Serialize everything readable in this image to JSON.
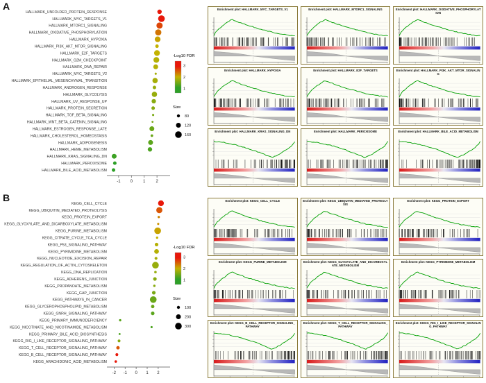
{
  "figure": {
    "background": "#ffffff"
  },
  "colors": {
    "scale_low": "#2ea028",
    "scale_mid": "#c4b200",
    "scale_high": "#e8180a",
    "gsea_curve": "#00a000",
    "barcode": "#111111",
    "rank_pos": "#d81b1b",
    "rank_neg": "#2020c0"
  },
  "chart_data": [
    {
      "panel": "A",
      "type": "scatter",
      "title": "",
      "xlabel": "",
      "ylabel": "",
      "xlim": [
        -1.7,
        2.7
      ],
      "x_ticks": [
        -1,
        0,
        1,
        2
      ],
      "terms": [
        "HALLMARK_UNFOLDED_PROTEIN_RESPONSE",
        "HALLMARK_MYC_TARGETS_V1",
        "HALLMARK_MTORC1_SIGNALING",
        "HALLMARK_OXIDATIVE_PHOSPHORYLATION",
        "HALLMARK_HYPOXIA",
        "HALLMARK_PI3K_AKT_MTOR_SIGNALING",
        "HALLMARK_E2F_TARGETS",
        "HALLMARK_G2M_CHECKPOINT",
        "HALLMARK_DNA_REPAIR",
        "HALLMARK_MYC_TARGETS_V2",
        "HALLMARK_EPITHELIAL_MESENCHYMAL_TRANSITION",
        "HALLMARK_ANDROGEN_RESPONSE",
        "HALLMARK_GLYCOLYSIS",
        "HALLMARK_UV_RESPONSE_UP",
        "HALLMARK_PROTEIN_SECRETION",
        "HALLMARK_TGF_BETA_SIGNALING",
        "HALLMARK_WNT_BETA_CATENIN_SIGNALING",
        "HALLMARK_ESTROGEN_RESPONSE_LATE",
        "HALLMARK_CHOLESTEROL_HOMEOSTASIS",
        "HALLMARK_ADIPOGENESIS",
        "HALLMARK_HEME_METABOLISM",
        "HALLMARK_KRAS_SIGNALING_DN",
        "HALLMARK_PEROXISOME",
        "HALLMARK_BILE_ACID_METABOLISM"
      ],
      "nes": [
        2.2,
        2.35,
        2.2,
        2.1,
        2.05,
        2.0,
        2.0,
        1.95,
        1.9,
        1.9,
        1.85,
        1.8,
        1.8,
        1.75,
        1.7,
        1.7,
        1.65,
        1.6,
        1.6,
        1.5,
        1.45,
        -1.35,
        -1.3,
        -1.4
      ],
      "neg_log10_fdr": [
        3.2,
        3.5,
        2.7,
        2.4,
        2.1,
        2.0,
        2.0,
        1.9,
        1.9,
        1.8,
        1.8,
        1.7,
        1.7,
        1.6,
        1.6,
        1.5,
        1.5,
        1.4,
        1.4,
        1.3,
        1.2,
        1.1,
        1.0,
        1.0
      ],
      "size": [
        110,
        160,
        150,
        150,
        140,
        90,
        140,
        140,
        120,
        60,
        130,
        90,
        130,
        110,
        90,
        60,
        50,
        120,
        70,
        120,
        110,
        120,
        90,
        90
      ],
      "legend": {
        "color_title": "-Log10 FDR",
        "color_ticks": [
          3,
          2,
          1
        ],
        "size_title": "Size",
        "size_ticks": [
          80,
          120,
          160
        ]
      },
      "gsea_plots": [
        {
          "title": "Enrichment plot: HALLMARK_MYC_TARGETS_V1",
          "direction": "pos"
        },
        {
          "title": "Enrichment plot: HALLMARK_MTORC1_SIGNALING",
          "direction": "pos"
        },
        {
          "title": "Enrichment plot: HALLMARK_OXIDATIVE_PHOSPHORYLATION",
          "direction": "pos"
        },
        {
          "title": "Enrichment plot: HALLMARK_HYPOXIA",
          "direction": "pos"
        },
        {
          "title": "Enrichment plot: HALLMARK_E2F_TARGETS",
          "direction": "pos"
        },
        {
          "title": "Enrichment plot: HALLMARK_PI3K_AKT_MTOR_SIGNALING",
          "direction": "pos"
        },
        {
          "title": "Enrichment plot: HALLMARK_KRAS_SIGNALING_DN",
          "direction": "neg"
        },
        {
          "title": "Enrichment plot: HALLMARK_PEROXISOME",
          "direction": "neg"
        },
        {
          "title": "Enrichment plot: HALLMARK_BILE_ACID_METABOLISM",
          "direction": "neg"
        }
      ]
    },
    {
      "panel": "B",
      "type": "scatter",
      "title": "",
      "xlabel": "",
      "ylabel": "",
      "xlim": [
        -2.4,
        2.7
      ],
      "x_ticks": [
        -2,
        -1,
        0,
        1,
        2
      ],
      "terms": [
        "KEGG_CELL_CYCLE",
        "KEGG_UBIQUITIN_MEDIATED_PROTEOLYSIS",
        "KEGG_PROTEIN_EXPORT",
        "KEGG_GLYOXYLATE_AND_DICARBOXYLATE_METABOLISM",
        "KEGG_PURINE_METABOLISM",
        "KEGG_CITRATE_CYCLE_TCA_CYCLE",
        "KEGG_P53_SIGNALING_PATHWAY",
        "KEGG_PYRIMIDINE_METABOLISM",
        "KEGG_NUCLEOTIDE_EXCISION_REPAIR",
        "KEGG_REGULATION_OF_ACTIN_CYTOSKELETON",
        "KEGG_DNA_REPLICATION",
        "KEGG_ADHERENS_JUNCTION",
        "KEGG_PROPANOATE_METABOLISM",
        "KEGG_GAP_JUNCTION",
        "KEGG_PATHWAYS_IN_CANCER",
        "KEGG_GLYCEROPHOSPHOLIPID_METABOLISM",
        "KEGG_GNRH_SIGNALING_PATHWAY",
        "KEGG_PRIMARY_IMMUNODEFICIENCY",
        "KEGG_NICOTINATE_AND_NICOTINAMIDE_METABOLISM",
        "KEGG_PRIMARY_BILE_ACID_BIOSYNTHESIS",
        "KEGG_RIG_I_LIKE_RECEPTOR_SIGNALING_PATHWAY",
        "KEGG_T_CELL_RECEPTOR_SIGNALING_PATHWAY",
        "KEGG_B_CELL_RECEPTOR_SIGNALING_PATHWAY",
        "KEGG_ARACHIDONIC_ACID_METABOLISM"
      ],
      "nes": [
        2.25,
        2.1,
        2.05,
        2.0,
        1.95,
        1.9,
        1.85,
        1.85,
        1.8,
        1.75,
        1.75,
        1.7,
        1.65,
        1.6,
        1.55,
        1.5,
        1.5,
        -1.45,
        1.4,
        -1.5,
        -1.55,
        -1.65,
        -1.75,
        -1.85
      ],
      "neg_log10_fdr": [
        3.4,
        2.6,
        2.3,
        2.2,
        2.1,
        2.0,
        1.9,
        1.9,
        1.8,
        1.7,
        1.7,
        1.6,
        1.6,
        1.5,
        1.4,
        1.4,
        1.3,
        1.3,
        1.2,
        1.2,
        1.6,
        2.6,
        3.0,
        3.3
      ],
      "size": [
        250,
        270,
        60,
        50,
        300,
        60,
        130,
        190,
        90,
        300,
        70,
        130,
        60,
        130,
        300,
        120,
        130,
        60,
        50,
        40,
        90,
        120,
        90,
        70
      ],
      "legend": {
        "color_title": "-Log10 FDR",
        "color_ticks": [
          3,
          2,
          1
        ],
        "size_title": "Size",
        "size_ticks": [
          100,
          200,
          300
        ]
      },
      "gsea_plots": [
        {
          "title": "Enrichment plot: KEGG_CELL_CYCLE",
          "direction": "pos"
        },
        {
          "title": "Enrichment plot: KEGG_UBIQUITIN_MEDIATED_PROTEOLYSIS",
          "direction": "pos"
        },
        {
          "title": "Enrichment plot: KEGG_PROTEIN_EXPORT",
          "direction": "pos"
        },
        {
          "title": "Enrichment plot: KEGG_PURINE_METABOLISM",
          "direction": "pos"
        },
        {
          "title": "Enrichment plot: KEGG_GLYOXYLATE_AND_DICARBOXYLATE_METABOLISM",
          "direction": "pos"
        },
        {
          "title": "Enrichment plot: KEGG_PYRIMIDINE_METABOLISM",
          "direction": "pos"
        },
        {
          "title": "Enrichment plot: KEGG_B_CELL_RECEPTOR_SIGNALING_PATHWAY",
          "direction": "neg"
        },
        {
          "title": "Enrichment plot: KEGG_T_CELL_RECEPTOR_SIGNALING_PATHWAY",
          "direction": "neg"
        },
        {
          "title": "Enrichment plot: KEGG_RIG_I_LIKE_RECEPTOR_SIGNALING_PATHWAY",
          "direction": "neg"
        }
      ]
    }
  ]
}
